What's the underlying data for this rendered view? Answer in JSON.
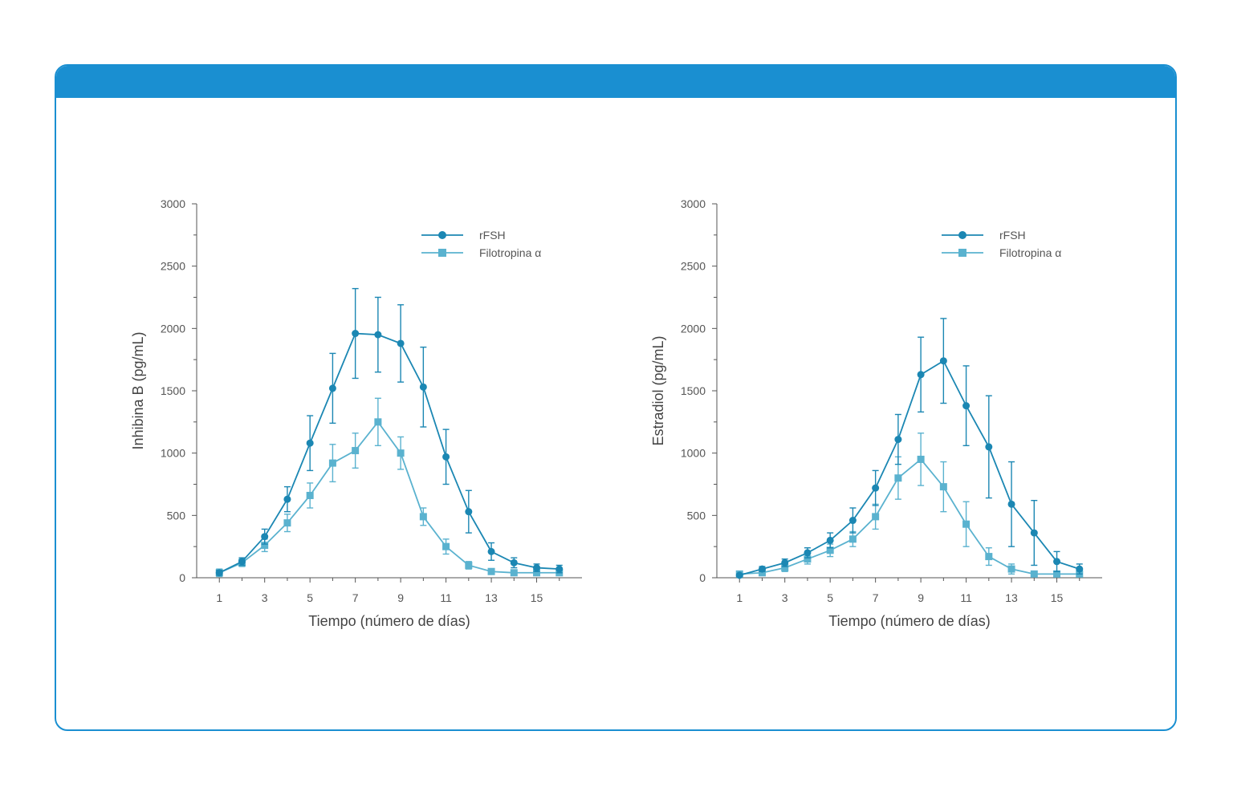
{
  "colors": {
    "panel_border": "#1a8fd1",
    "header": "#1a8fd1",
    "rfsh": "#1b87b3",
    "filotropina": "#5ab2cf",
    "axis": "#555555"
  },
  "chart_data": [
    {
      "type": "line",
      "title": "",
      "xlabel": "Tiempo (número de días)",
      "ylabel": "Inhibina B (pg/mL)",
      "xlim": [
        0,
        17
      ],
      "ylim": [
        0,
        3000
      ],
      "xticks": [
        1,
        3,
        5,
        7,
        9,
        11,
        13,
        15
      ],
      "yticks": [
        0,
        500,
        1000,
        1500,
        2000,
        2500,
        3000
      ],
      "legend_position": "top-right",
      "x": [
        1,
        2,
        3,
        4,
        5,
        6,
        7,
        8,
        9,
        10,
        11,
        12,
        13,
        14,
        15,
        16
      ],
      "series": [
        {
          "name": "rFSH",
          "marker": "circle",
          "values": [
            40,
            130,
            330,
            630,
            1080,
            1520,
            1960,
            1950,
            1880,
            1530,
            970,
            530,
            210,
            120,
            80,
            70
          ],
          "errors": [
            20,
            30,
            60,
            100,
            220,
            280,
            360,
            300,
            310,
            320,
            220,
            170,
            70,
            40,
            30,
            30
          ]
        },
        {
          "name": "Filotropina α",
          "marker": "square",
          "values": [
            40,
            120,
            260,
            440,
            660,
            920,
            1020,
            1250,
            1000,
            490,
            250,
            100,
            50,
            40,
            40,
            40
          ],
          "errors": [
            30,
            30,
            50,
            70,
            100,
            150,
            140,
            190,
            130,
            70,
            60,
            30,
            20,
            20,
            20,
            20
          ]
        }
      ]
    },
    {
      "type": "line",
      "title": "",
      "xlabel": "Tiempo (número de días)",
      "ylabel": "Estradiol (pg/mL)",
      "xlim": [
        0,
        17
      ],
      "ylim": [
        0,
        3000
      ],
      "xticks": [
        1,
        3,
        5,
        7,
        9,
        11,
        13,
        15
      ],
      "yticks": [
        0,
        500,
        1000,
        1500,
        2000,
        2500,
        3000
      ],
      "legend_position": "top-right",
      "x": [
        1,
        2,
        3,
        4,
        5,
        6,
        7,
        8,
        9,
        10,
        11,
        12,
        13,
        14,
        15,
        16
      ],
      "series": [
        {
          "name": "rFSH",
          "marker": "circle",
          "values": [
            20,
            70,
            120,
            200,
            300,
            460,
            720,
            1110,
            1630,
            1740,
            1380,
            1050,
            590,
            360,
            130,
            70
          ],
          "errors": [
            10,
            20,
            30,
            40,
            60,
            100,
            140,
            200,
            300,
            340,
            320,
            410,
            340,
            260,
            80,
            40
          ]
        },
        {
          "name": "Filotropina α",
          "marker": "square",
          "values": [
            30,
            40,
            80,
            150,
            220,
            310,
            490,
            800,
            950,
            730,
            430,
            170,
            70,
            30,
            30,
            30
          ],
          "errors": [
            10,
            20,
            30,
            40,
            50,
            60,
            100,
            170,
            210,
            200,
            180,
            70,
            40,
            20,
            20,
            20
          ]
        }
      ]
    }
  ]
}
